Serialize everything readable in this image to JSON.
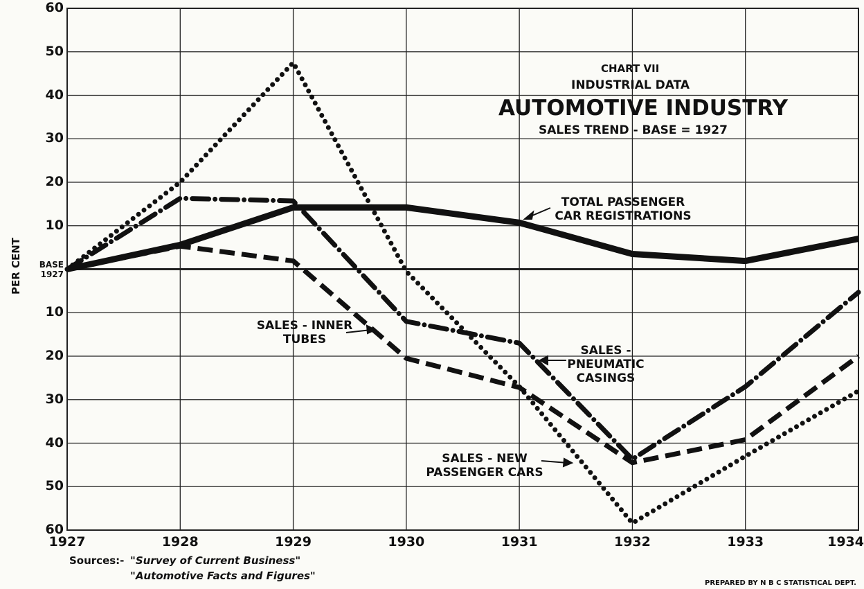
{
  "chart_data": {
    "type": "line",
    "title": "AUTOMOTIVE INDUSTRY",
    "chart_number": "CHART VII",
    "supertitle": "INDUSTRIAL DATA",
    "subtitle": "SALES TREND - BASE = 1927",
    "ylabel": "PER CENT",
    "x": [
      1927,
      1928,
      1929,
      1930,
      1931,
      1932,
      1933,
      1934
    ],
    "xlim": [
      1927,
      1934
    ],
    "xticks": [
      1927,
      1928,
      1929,
      1930,
      1931,
      1932,
      1933,
      1934
    ],
    "ylim": [
      -60,
      60
    ],
    "yticks": [
      60,
      50,
      40,
      30,
      20,
      10,
      {
        "value": 0,
        "label": "BASE 1927"
      },
      {
        "value": -10,
        "label": "10"
      },
      {
        "value": -20,
        "label": "20"
      },
      {
        "value": -30,
        "label": "30"
      },
      {
        "value": -40,
        "label": "40"
      },
      {
        "value": -50,
        "label": "50"
      },
      {
        "value": -60,
        "label": "60"
      }
    ],
    "grid": true,
    "series": [
      {
        "name": "TOTAL PASSENGER CAR REGISTRATIONS",
        "color": "#111111",
        "line_style": "solid",
        "values": [
          0,
          5.6,
          14.2,
          14.2,
          10.7,
          3.5,
          1.9,
          7
        ]
      },
      {
        "name": "SALES - NEW PASSENGER CARS",
        "color": "#111111",
        "line_style": "dotted",
        "values": [
          0,
          20,
          47.5,
          -0.5,
          -27,
          -58.4,
          -43,
          -28
        ]
      },
      {
        "name": "SALES - PNEUMATIC CASINGS",
        "color": "#111111",
        "line_style": "dash-dot",
        "values": [
          0,
          16.3,
          15.7,
          -12,
          -17,
          -43.7,
          -27,
          -5.3
        ]
      },
      {
        "name": "SALES - INNER TUBES",
        "color": "#111111",
        "line_style": "dashed",
        "values": [
          0,
          5.3,
          1.9,
          -20.5,
          -27.2,
          -44.5,
          -39.2,
          -20
        ]
      }
    ],
    "sources_label": "Sources:-",
    "sources": [
      "\"Survey of Current Business\"",
      "\"Automotive Facts and Figures\""
    ],
    "credit": "PREPARED BY N B C STATISTICAL DEPT."
  }
}
